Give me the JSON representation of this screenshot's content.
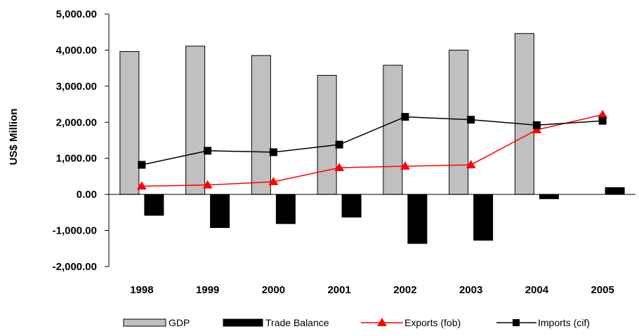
{
  "chart_data": {
    "type": "bar",
    "categories": [
      "1998",
      "1999",
      "2000",
      "2001",
      "2002",
      "2003",
      "2004",
      "2005"
    ],
    "ylabel": "US$ Million",
    "ylim": [
      -2000,
      5000
    ],
    "y_ticks": [
      "5,000.00",
      "4,000.00",
      "3,000.00",
      "2,000.00",
      "1,000.00",
      "0.00",
      "-1,000.00",
      "-2,000.00"
    ],
    "y_tick_values": [
      5000,
      4000,
      3000,
      2000,
      1000,
      0,
      -1000,
      -2000
    ],
    "grid": false,
    "legend_position": "bottom",
    "series": [
      {
        "name": "GDP",
        "kind": "bar",
        "color": "#c0c0c0",
        "values": [
          3960,
          4110,
          3850,
          3300,
          3580,
          4000,
          4460,
          null
        ]
      },
      {
        "name": "Trade Balance",
        "kind": "bar",
        "color": "#000000",
        "values": [
          -580,
          -920,
          -810,
          -630,
          -1360,
          -1270,
          -120,
          190
        ]
      },
      {
        "name": "Exports (fob)",
        "kind": "line",
        "marker": "triangle",
        "color": "#ff0000",
        "values": [
          230,
          260,
          350,
          740,
          780,
          820,
          1790,
          2210
        ]
      },
      {
        "name": "Imports (cif)",
        "kind": "line",
        "marker": "square",
        "color": "#000000",
        "values": [
          820,
          1210,
          1170,
          1380,
          2150,
          2070,
          1920,
          2040
        ]
      }
    ]
  }
}
